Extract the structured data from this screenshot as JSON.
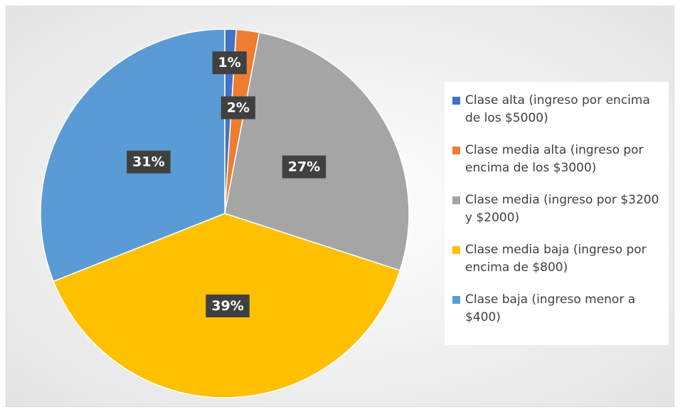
{
  "chart_data": {
    "type": "pie",
    "categories": [
      "Clase alta (ingreso por encima de los $5000)",
      "Clase media alta (ingreso por encima de los $3000)",
      "Clase media (ingreso por $3200 y $2000)",
      "Clase media baja (ingreso por encima de $800)",
      "Clase baja (ingreso menor a $400)"
    ],
    "values": [
      1,
      2,
      27,
      39,
      31
    ],
    "value_labels": [
      "1%",
      "2%",
      "27%",
      "39%",
      "31%"
    ],
    "colors": [
      "#4472c4",
      "#ed7d31",
      "#a5a5a5",
      "#ffc000",
      "#5b9bd5"
    ],
    "legend": "right"
  }
}
